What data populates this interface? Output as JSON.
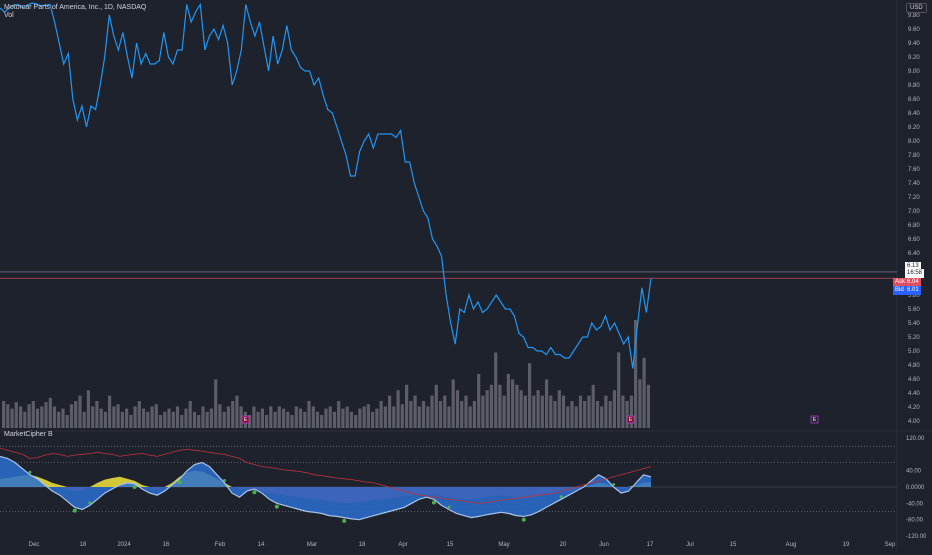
{
  "header": {
    "title": "Motorcar Parts of America, Inc., 1D, NASDAQ",
    "volume_label": "Vol",
    "currency": "USD",
    "oscillator_label": "MarketCipher B"
  },
  "colors": {
    "background": "#1e222d",
    "price_line": "#2196f3",
    "volume": "#6a6d78",
    "ask": "#e04f5f",
    "bid": "#2962ff",
    "last_price": "#ffffff",
    "wave_blue": "#2a6fd1",
    "wave_light": "#a9c4e8",
    "pos_yellow": "#f2e53a",
    "pos_green": "#8bc34a",
    "neg_red": "#c0323b",
    "neg_purple": "#9c4fa0",
    "signal_green": "#4caf50",
    "earnings": "#e040fb"
  },
  "price_labels": {
    "last_price": "6.13",
    "countdown": "16:58",
    "ask_label": "Ask",
    "ask_value": "6.04",
    "bid_label": "Bid",
    "bid_value": "6.01"
  },
  "earnings_marker": "E",
  "chart_data": [
    {
      "type": "line",
      "title": "Motorcar Parts of America, Inc., 1D, NASDAQ",
      "ylabel": "USD",
      "ylim": [
        3.9,
        9.9
      ],
      "x_ticks": [
        "Dec",
        "18",
        "2024",
        "16",
        "Feb",
        "14",
        "Mar",
        "18",
        "Apr",
        "15",
        "May",
        "20",
        "Jun",
        "17",
        "Jul",
        "15",
        "Aug",
        "19",
        "Sep"
      ],
      "y_ticks": [
        4.0,
        4.2,
        4.4,
        4.6,
        4.8,
        5.0,
        5.2,
        5.4,
        5.6,
        5.8,
        6.0,
        6.2,
        6.4,
        6.6,
        6.8,
        7.0,
        7.2,
        7.4,
        7.6,
        7.8,
        8.0,
        8.2,
        8.4,
        8.6,
        8.8,
        9.0,
        9.2,
        9.4,
        9.6,
        9.8
      ],
      "x": [
        0,
        1,
        2,
        3,
        4,
        5,
        6,
        7,
        8,
        9,
        10,
        11,
        12,
        13,
        14,
        15,
        16,
        17,
        18,
        19,
        20,
        21,
        22,
        23,
        24,
        25,
        26,
        27,
        28,
        29,
        30,
        31,
        32,
        33,
        34,
        35,
        36,
        37,
        38,
        39,
        40,
        41,
        42,
        43,
        44,
        45,
        46,
        47,
        48,
        49,
        50,
        51,
        52,
        53,
        54,
        55,
        56,
        57,
        58,
        59,
        60,
        61,
        62,
        63,
        64,
        65,
        66,
        67,
        68,
        69,
        70,
        71,
        72,
        73,
        74,
        75,
        76,
        77,
        78,
        79,
        80,
        81,
        82,
        83,
        84,
        85,
        86,
        87,
        88,
        89,
        90,
        91,
        92,
        93,
        94,
        95,
        96,
        97,
        98,
        99,
        100,
        101,
        102,
        103,
        104,
        105,
        106,
        107,
        108,
        109,
        110,
        111,
        112,
        113,
        114,
        115,
        116,
        117,
        118,
        119,
        120,
        121,
        122,
        123,
        124,
        125,
        126,
        127,
        128,
        129,
        130,
        131,
        132,
        133
      ],
      "series": [
        {
          "name": "Price",
          "values": [
            9.9,
            9.84,
            9.9,
            9.94,
            9.95,
            9.9,
            9.94,
            9.97,
            9.96,
            9.93,
            9.94,
            9.95,
            9.7,
            9.4,
            9.1,
            9.25,
            8.6,
            8.3,
            8.5,
            8.2,
            8.5,
            8.45,
            8.8,
            9.2,
            9.8,
            9.5,
            9.3,
            9.55,
            9.2,
            8.9,
            9.4,
            9.1,
            9.25,
            9.1,
            9.1,
            9.15,
            9.55,
            9.2,
            9.1,
            9.3,
            9.3,
            9.95,
            9.7,
            9.85,
            9.95,
            9.3,
            9.5,
            9.6,
            9.45,
            9.65,
            9.4,
            8.8,
            9.0,
            9.3,
            9.95,
            9.7,
            9.5,
            9.7,
            9.35,
            9.0,
            9.5,
            9.1,
            9.3,
            9.65,
            9.3,
            9.2,
            9.05,
            9.0,
            9.0,
            8.8,
            8.9,
            8.65,
            8.45,
            8.4,
            8.2,
            8.0,
            7.8,
            7.5,
            7.5,
            7.85,
            8.0,
            8.1,
            7.9,
            8.1,
            8.1,
            8.1,
            8.1,
            8.05,
            8.15,
            7.7,
            7.7,
            7.4,
            7.2,
            7.0,
            6.9,
            6.6,
            6.5,
            6.35,
            5.8,
            5.4,
            5.1,
            5.6,
            5.55,
            5.8,
            5.6,
            5.7,
            5.55,
            5.6,
            5.7,
            5.8,
            5.7,
            5.6,
            5.6,
            5.5,
            5.25,
            5.2,
            5.05,
            5.05,
            5.0,
            5.0,
            4.95,
            5.05,
            4.95,
            4.95,
            4.9,
            4.9,
            5.0,
            5.1,
            5.2,
            5.2,
            5.4,
            5.3,
            5.35,
            5.5
          ]
        }
      ],
      "extra_points": [
        5.3,
        5.4,
        5.25,
        5.1,
        5.2,
        4.75,
        5.35,
        5.9,
        5.55,
        6.04
      ]
    },
    {
      "type": "bar",
      "title": "Vol",
      "note": "relative volume, max = 1",
      "values": [
        0.25,
        0.22,
        0.18,
        0.24,
        0.2,
        0.15,
        0.22,
        0.25,
        0.18,
        0.2,
        0.24,
        0.28,
        0.2,
        0.15,
        0.18,
        0.12,
        0.22,
        0.25,
        0.3,
        0.15,
        0.35,
        0.2,
        0.25,
        0.18,
        0.15,
        0.3,
        0.2,
        0.22,
        0.15,
        0.18,
        0.12,
        0.2,
        0.25,
        0.18,
        0.15,
        0.2,
        0.22,
        0.12,
        0.15,
        0.18,
        0.15,
        0.2,
        0.12,
        0.18,
        0.25,
        0.15,
        0.12,
        0.2,
        0.15,
        0.18,
        0.45,
        0.22,
        0.15,
        0.2,
        0.25,
        0.3,
        0.2,
        0.15,
        0.12,
        0.2,
        0.15,
        0.18,
        0.12,
        0.2,
        0.15,
        0.2,
        0.18,
        0.15,
        0.12,
        0.2,
        0.18,
        0.15,
        0.25,
        0.2,
        0.15,
        0.12,
        0.18,
        0.2,
        0.15,
        0.25,
        0.18,
        0.2,
        0.15,
        0.12,
        0.18,
        0.2,
        0.22,
        0.15,
        0.18,
        0.25,
        0.2,
        0.3,
        0.2,
        0.35,
        0.22,
        0.4,
        0.25,
        0.3,
        0.2,
        0.25,
        0.2,
        0.3,
        0.4,
        0.25,
        0.3,
        0.2,
        0.45,
        0.35,
        0.25,
        0.3,
        0.2,
        0.25,
        0.5,
        0.3,
        0.35,
        0.4,
        0.7,
        0.4,
        0.3,
        0.5,
        0.45,
        0.4,
        0.35,
        0.3,
        0.6,
        0.3,
        0.35,
        0.3,
        0.45,
        0.3,
        0.25,
        0.35,
        0.3,
        0.2,
        0.25,
        0.2,
        0.3,
        0.25,
        0.3,
        0.4,
        0.25,
        0.2,
        0.3,
        0.25,
        0.35,
        0.7,
        0.3,
        0.25,
        0.3,
        1.0,
        0.45,
        0.65,
        0.4
      ]
    },
    {
      "type": "area",
      "title": "MarketCipher B",
      "ylim": [
        -120,
        120
      ],
      "y_ticks": [
        "120.00",
        "40.00",
        "0.0000",
        "-40.00",
        "-80.00",
        "-120.00"
      ],
      "overbought_level": 100,
      "oversold_level": -60,
      "mid_level": 60,
      "wave": [
        75,
        70,
        60,
        45,
        30,
        20,
        5,
        -10,
        -20,
        -35,
        -50,
        -55,
        -45,
        -30,
        -15,
        -5,
        5,
        10,
        8,
        -5,
        -15,
        -20,
        -10,
        5,
        20,
        40,
        55,
        60,
        50,
        30,
        10,
        -15,
        -25,
        -10,
        -5,
        -15,
        -30,
        -40,
        -45,
        -50,
        -55,
        -60,
        -62,
        -65,
        -70,
        -72,
        -75,
        -78,
        -80,
        -75,
        -70,
        -65,
        -60,
        -55,
        -50,
        -40,
        -30,
        -25,
        -30,
        -45,
        -55,
        -65,
        -70,
        -75,
        -72,
        -68,
        -65,
        -62,
        -65,
        -70,
        -72,
        -68,
        -60,
        -50,
        -40,
        -30,
        -20,
        -10,
        0,
        15,
        30,
        20,
        0,
        -15,
        -10,
        10,
        30,
        25
      ],
      "money_flow": [
        20,
        22,
        25,
        28,
        30,
        25,
        18,
        10,
        5,
        -5,
        -10,
        -8,
        0,
        10,
        18,
        22,
        25,
        20,
        15,
        5,
        -5,
        -8,
        0,
        10,
        25,
        35,
        40,
        38,
        30,
        20,
        10,
        0,
        -5,
        -8,
        -6,
        -10,
        -15,
        -18,
        -20,
        -22,
        -25,
        -28,
        -30,
        -32,
        -35,
        -38,
        -40,
        -40,
        -38,
        -35,
        -32,
        -30,
        -28,
        -25,
        -22,
        -20,
        -18,
        -18,
        -20,
        -22,
        -25,
        -28,
        -30,
        -30,
        -28,
        -25,
        -22,
        -20,
        -22,
        -25,
        -28,
        -25,
        -22,
        -18,
        -15,
        -12,
        -10,
        -5,
        0,
        5,
        10,
        8,
        0,
        -5,
        0,
        5,
        10,
        12
      ],
      "rsi_line": [
        95,
        90,
        85,
        80,
        70,
        72,
        78,
        82,
        80,
        75,
        78,
        80,
        82,
        85,
        82,
        80,
        75,
        78,
        80,
        82,
        78,
        75,
        80,
        85,
        90,
        92,
        90,
        88,
        85,
        82,
        80,
        75,
        70,
        60,
        55,
        50,
        48,
        45,
        42,
        40,
        38,
        35,
        30,
        28,
        25,
        22,
        20,
        18,
        15,
        12,
        10,
        5,
        0,
        -5,
        -10,
        -15,
        -20,
        -22,
        -25,
        -28,
        -30,
        -32,
        -35,
        -38,
        -40,
        -38,
        -35,
        -32,
        -30,
        -28,
        -25,
        -22,
        -20,
        -18,
        -15,
        -10,
        -5,
        0,
        5,
        10,
        15,
        20,
        25,
        30,
        35,
        40,
        45,
        50
      ],
      "buy_signals_at": [
        10,
        18,
        24,
        34,
        37,
        46,
        58,
        70
      ],
      "sell_signals_at": [
        4,
        12,
        30,
        60,
        75,
        82
      ]
    }
  ]
}
